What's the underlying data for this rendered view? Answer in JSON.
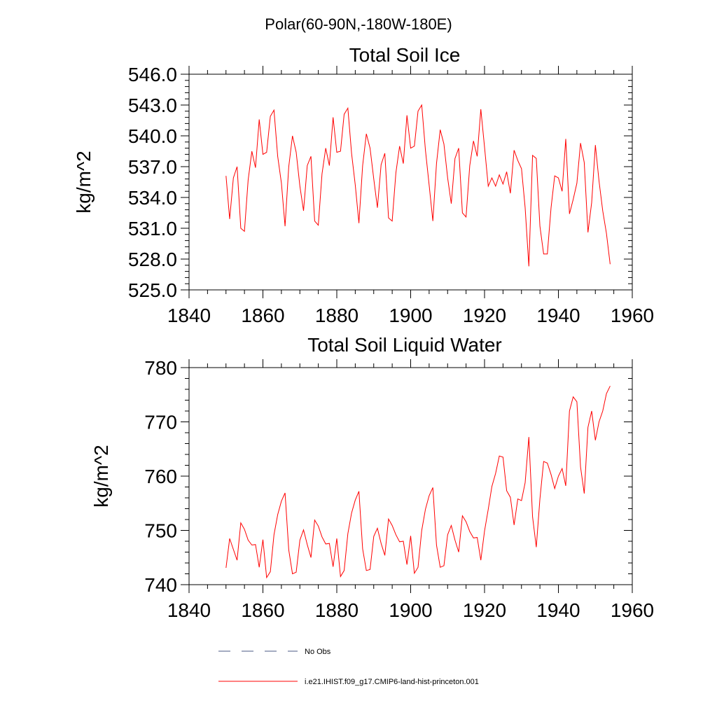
{
  "page_title": "Polar(60-90N,-180W-180E)",
  "chart_data": [
    {
      "type": "line",
      "title": "Total Soil Ice",
      "xlabel": "",
      "ylabel": "kg/m^2",
      "xlim": [
        1840,
        1960
      ],
      "ylim": [
        525.0,
        546.0
      ],
      "xticks": [
        "1840",
        "1860",
        "1880",
        "1900",
        "1920",
        "1940",
        "1960"
      ],
      "yticks": [
        "525.0",
        "528.0",
        "531.0",
        "534.0",
        "537.0",
        "540.0",
        "543.0",
        "546.0"
      ],
      "grid": false,
      "series": [
        {
          "name": "i.e21.IHIST.f09_g17.CMIP6-land-hist-princeton.001",
          "color": "#ff0000",
          "x": [
            1850,
            1851,
            1852,
            1853,
            1854,
            1855,
            1856,
            1857,
            1858,
            1859,
            1860,
            1861,
            1862,
            1863,
            1864,
            1865,
            1866,
            1867,
            1868,
            1869,
            1870,
            1871,
            1872,
            1873,
            1874,
            1875,
            1876,
            1877,
            1878,
            1879,
            1880,
            1881,
            1882,
            1883,
            1884,
            1885,
            1886,
            1887,
            1888,
            1889,
            1890,
            1891,
            1892,
            1893,
            1894,
            1895,
            1896,
            1897,
            1898,
            1899,
            1900,
            1901,
            1902,
            1903,
            1904,
            1905,
            1906,
            1907,
            1908,
            1909,
            1910,
            1911,
            1912,
            1913,
            1914,
            1915,
            1916,
            1917,
            1918,
            1919,
            1920,
            1921,
            1922,
            1923,
            1924,
            1925,
            1926,
            1927,
            1928,
            1929,
            1930,
            1931,
            1932,
            1933,
            1934,
            1935,
            1936,
            1937,
            1938,
            1939,
            1940,
            1941,
            1942,
            1943,
            1944,
            1945,
            1946,
            1947,
            1948,
            1949,
            1950,
            1951,
            1952,
            1953,
            1954
          ],
          "y": [
            536.1,
            531.9,
            535.9,
            537.0,
            531.0,
            530.7,
            535.7,
            538.5,
            536.9,
            541.6,
            538.2,
            538.4,
            541.9,
            542.5,
            538.0,
            535.4,
            531.2,
            537.0,
            540.0,
            538.4,
            535.1,
            532.7,
            537.1,
            538.0,
            531.7,
            531.3,
            536.3,
            538.8,
            537.1,
            541.8,
            538.4,
            538.5,
            542.1,
            542.7,
            538.3,
            535.2,
            531.5,
            537.1,
            540.2,
            538.8,
            535.8,
            533.0,
            537.2,
            538.3,
            532.0,
            531.7,
            536.4,
            539.0,
            537.3,
            542.0,
            538.8,
            539.0,
            542.4,
            543.0,
            538.6,
            535.2,
            531.7,
            537.3,
            540.6,
            539.2,
            535.9,
            533.4,
            537.8,
            538.8,
            532.5,
            532.1,
            537.1,
            539.5,
            538.0,
            542.6,
            538.9,
            535.1,
            535.9,
            535.1,
            536.2,
            535.3,
            536.5,
            534.4,
            538.6,
            537.6,
            536.8,
            533.0,
            527.3,
            538.1,
            537.8,
            531.2,
            528.5,
            528.5,
            533.0,
            536.1,
            535.9,
            534.6,
            539.7,
            532.4,
            533.8,
            535.4,
            539.3,
            537.4,
            530.6,
            533.5,
            539.1,
            535.6,
            532.7,
            530.5,
            527.5
          ]
        }
      ]
    },
    {
      "type": "line",
      "title": "Total Soil Liquid Water",
      "xlabel": "",
      "ylabel": "kg/m^2",
      "xlim": [
        1840,
        1960
      ],
      "ylim": [
        740,
        780
      ],
      "xticks": [
        "1840",
        "1860",
        "1880",
        "1900",
        "1920",
        "1940",
        "1960"
      ],
      "yticks": [
        "740",
        "750",
        "760",
        "770",
        "780"
      ],
      "grid": false,
      "series": [
        {
          "name": "i.e21.IHIST.f09_g17.CMIP6-land-hist-princeton.001",
          "color": "#ff0000",
          "x": [
            1850,
            1851,
            1852,
            1853,
            1854,
            1855,
            1856,
            1857,
            1858,
            1859,
            1860,
            1861,
            1862,
            1863,
            1864,
            1865,
            1866,
            1867,
            1868,
            1869,
            1870,
            1871,
            1872,
            1873,
            1874,
            1875,
            1876,
            1877,
            1878,
            1879,
            1880,
            1881,
            1882,
            1883,
            1884,
            1885,
            1886,
            1887,
            1888,
            1889,
            1890,
            1891,
            1892,
            1893,
            1894,
            1895,
            1896,
            1897,
            1898,
            1899,
            1900,
            1901,
            1902,
            1903,
            1904,
            1905,
            1906,
            1907,
            1908,
            1909,
            1910,
            1911,
            1912,
            1913,
            1914,
            1915,
            1916,
            1917,
            1918,
            1919,
            1920,
            1921,
            1922,
            1923,
            1924,
            1925,
            1926,
            1927,
            1928,
            1929,
            1930,
            1931,
            1932,
            1933,
            1934,
            1935,
            1936,
            1937,
            1938,
            1939,
            1940,
            1941,
            1942,
            1943,
            1944,
            1945,
            1946,
            1947,
            1948,
            1949,
            1950,
            1951,
            1952,
            1953,
            1954
          ],
          "y": [
            743.1,
            748.5,
            746.5,
            744.5,
            751.4,
            750.2,
            748.2,
            747.3,
            747.4,
            743.2,
            748.3,
            741.3,
            742.4,
            749.2,
            752.9,
            755.4,
            756.9,
            746.4,
            742.0,
            742.3,
            748.2,
            750.1,
            747.4,
            745.0,
            751.9,
            750.8,
            748.8,
            747.5,
            747.6,
            743.3,
            748.5,
            741.5,
            742.6,
            749.4,
            753.2,
            755.6,
            757.2,
            746.6,
            742.6,
            742.8,
            748.9,
            750.4,
            747.6,
            745.4,
            752.1,
            750.9,
            749.2,
            747.9,
            748.0,
            743.7,
            749.0,
            742.1,
            743.2,
            750.0,
            753.9,
            756.4,
            757.9,
            747.3,
            743.2,
            743.5,
            749.2,
            750.9,
            748.2,
            746.0,
            752.7,
            751.6,
            749.8,
            748.6,
            748.7,
            744.5,
            749.9,
            753.9,
            758.1,
            760.5,
            763.7,
            763.5,
            757.3,
            756.1,
            751.0,
            755.8,
            755.5,
            758.8,
            767.2,
            752.5,
            746.9,
            755.8,
            762.7,
            762.4,
            760.3,
            757.7,
            760.0,
            761.4,
            758.2,
            772.0,
            774.6,
            773.7,
            761.7,
            756.8,
            769.0,
            772.0,
            766.6,
            770.0,
            772.0,
            775.2,
            776.6
          ]
        }
      ]
    }
  ],
  "legend": {
    "placement": "bottom",
    "entries": [
      {
        "label": "No Obs",
        "color": "#4a5a86",
        "style": "dashed"
      },
      {
        "label": "i.e21.IHIST.f09_g17.CMIP6-land-hist-princeton.001",
        "color": "#ff0000",
        "style": "solid"
      }
    ]
  }
}
